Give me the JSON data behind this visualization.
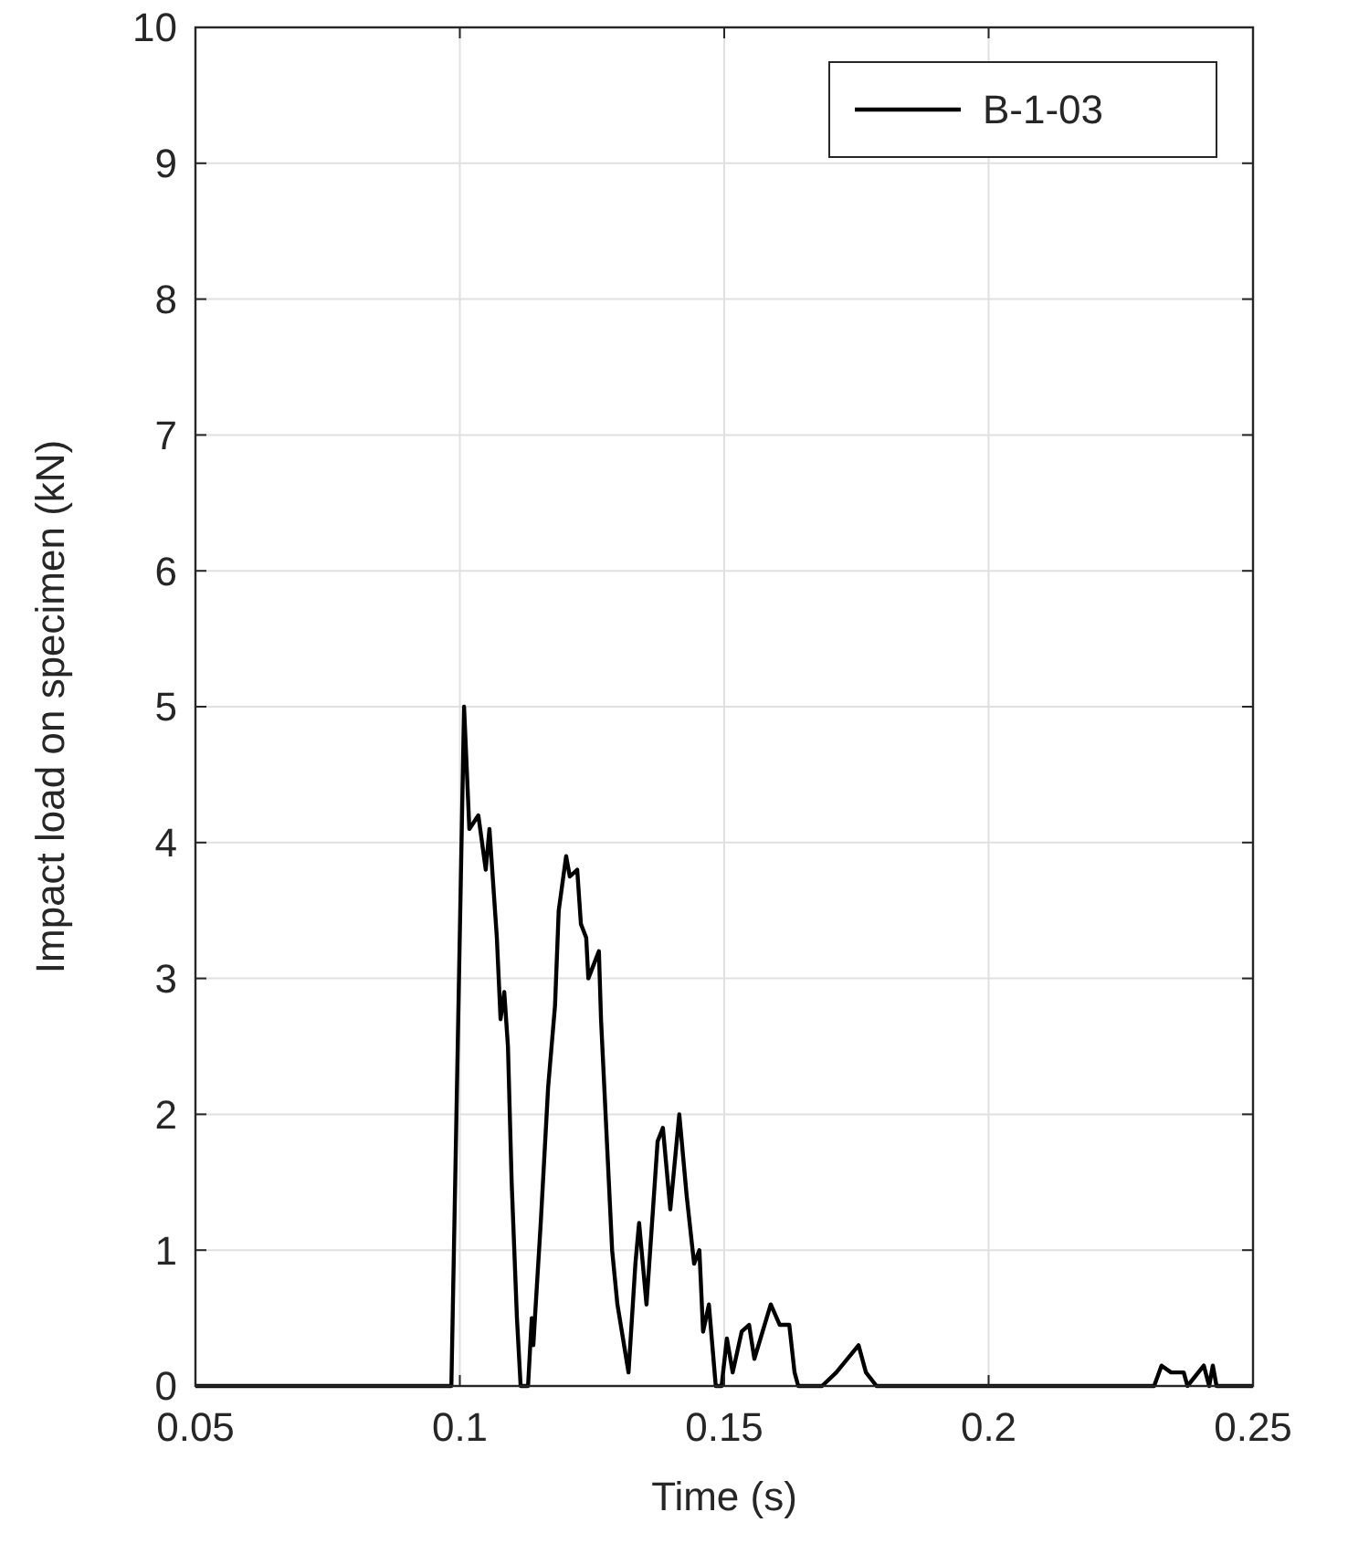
{
  "chart_data": {
    "type": "line",
    "xlabel": "Time (s)",
    "ylabel": "Impact load on specimen (kN)",
    "xlim": [
      0.05,
      0.25
    ],
    "xticks": [
      0.05,
      0.1,
      0.15,
      0.2,
      0.25
    ],
    "ylim": [
      0,
      10
    ],
    "yticks": [
      0,
      1,
      2,
      3,
      4,
      5,
      6,
      7,
      8,
      9,
      10
    ],
    "grid": true,
    "legend": "top right",
    "line_style": "solid",
    "marker": "none",
    "series": [
      {
        "name": "B-1-03",
        "color": "#000000",
        "x": [
          0.05,
          0.0984,
          0.1008,
          0.1018,
          0.1035,
          0.1049,
          0.1056,
          0.107,
          0.1077,
          0.1084,
          0.1091,
          0.1098,
          0.1108,
          0.1115,
          0.1129,
          0.1136,
          0.1139,
          0.1142,
          0.1153,
          0.1167,
          0.118,
          0.1187,
          0.1201,
          0.1208,
          0.1222,
          0.1229,
          0.1239,
          0.1243,
          0.1263,
          0.1267,
          0.1288,
          0.1298,
          0.1319,
          0.1332,
          0.1339,
          0.1353,
          0.1374,
          0.1384,
          0.1398,
          0.1415,
          0.1429,
          0.1443,
          0.1453,
          0.146,
          0.1471,
          0.1484,
          0.1495,
          0.1505,
          0.1516,
          0.1533,
          0.1547,
          0.1557,
          0.1588,
          0.1605,
          0.1623,
          0.1633,
          0.164,
          0.1685,
          0.1712,
          0.1754,
          0.1768,
          0.1788,
          0.2313,
          0.2327,
          0.2345,
          0.2369,
          0.2376,
          0.2407,
          0.2417,
          0.2424,
          0.2431,
          0.25
        ],
        "values": [
          0,
          0,
          5.0,
          4.1,
          4.2,
          3.8,
          4.1,
          3.3,
          2.7,
          2.9,
          2.5,
          1.5,
          0.5,
          0,
          0,
          0.5,
          0.3,
          0.5,
          1.2,
          2.2,
          2.8,
          3.5,
          3.9,
          3.75,
          3.8,
          3.4,
          3.3,
          3.0,
          3.2,
          2.7,
          1.0,
          0.6,
          0.1,
          0.9,
          1.2,
          0.6,
          1.8,
          1.9,
          1.3,
          2.0,
          1.4,
          0.9,
          1.0,
          0.4,
          0.6,
          0,
          0,
          0.35,
          0.1,
          0.4,
          0.45,
          0.2,
          0.6,
          0.45,
          0.45,
          0.1,
          0,
          0,
          0.1,
          0.3,
          0.1,
          0,
          0,
          0.15,
          0.1,
          0.1,
          0,
          0.15,
          0,
          0.15,
          0,
          0
        ]
      }
    ]
  }
}
